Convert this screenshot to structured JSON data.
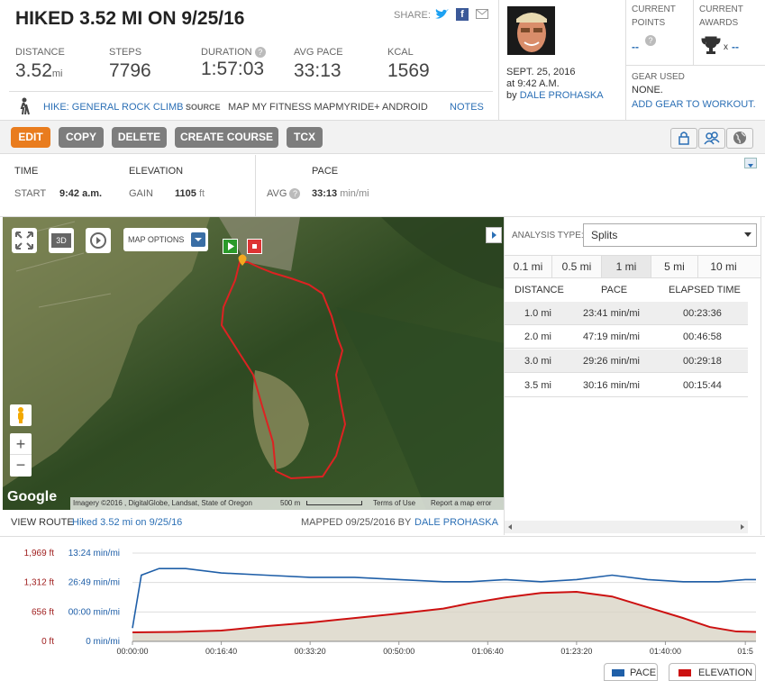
{
  "header": {
    "title": "HIKED 3.52 MI ON 9/25/16",
    "share_label": "SHARE:"
  },
  "stats": [
    {
      "label": "DISTANCE",
      "value": "3.52",
      "unit": "mi"
    },
    {
      "label": "STEPS",
      "value": "7796",
      "unit": ""
    },
    {
      "label": "DURATION",
      "value": "1:57:03",
      "unit": ""
    },
    {
      "label": "AVG PACE",
      "value": "33:13",
      "unit": ""
    },
    {
      "label": "KCAL",
      "value": "1569",
      "unit": ""
    }
  ],
  "activity": {
    "type_label": "HIKE: GENERAL ROCK CLIMB",
    "source_label": "SOURCE",
    "source_value": "MAP MY FITNESS MAPMYRIDE+ ANDROID",
    "notes": "NOTES"
  },
  "profile": {
    "date": "SEPT. 25, 2016",
    "time": "at 9:42 A.M.",
    "by": "by",
    "user": "DALE PROHASKA"
  },
  "points": {
    "label1": "CURRENT",
    "label2": "POINTS",
    "value": "--"
  },
  "awards": {
    "label1": "CURRENT",
    "label2": "AWARDS",
    "x": "x",
    "value": "--"
  },
  "gear": {
    "label": "GEAR USED",
    "value": "NONE.",
    "add": "ADD GEAR TO WORKOUT."
  },
  "toolbar": {
    "edit": "EDIT",
    "copy": "COPY",
    "delete": "DELETE",
    "create_course": "CREATE COURSE",
    "tcx": "TCX"
  },
  "summary": {
    "time_label": "TIME",
    "start_label": "START",
    "start_value": "9:42 a.m.",
    "elev_label": "ELEVATION",
    "gain_label": "GAIN",
    "gain_value": "1105",
    "gain_unit": "ft",
    "pace_label": "PACE",
    "avg_label": "AVG",
    "avg_value": "33:13",
    "avg_unit": "min/mi"
  },
  "map": {
    "options": "MAP OPTIONS",
    "btn3d": "3D",
    "google": "Google",
    "attrib": "Imagery ©2016 , DigitalGlobe, Landsat, State of Oregon",
    "scale": "500 m",
    "terms": "Terms of Use",
    "report": "Report a map error",
    "zoom_in": "+",
    "zoom_out": "−"
  },
  "analysis": {
    "label": "ANALYSIS TYPE:",
    "selected": "Splits",
    "tabs": [
      "0.1 mi",
      "0.5 mi",
      "1 mi",
      "5 mi",
      "10 mi"
    ],
    "headers": [
      "DISTANCE",
      "PACE",
      "ELAPSED TIME"
    ],
    "rows": [
      [
        "1.0 mi",
        "23:41 min/mi",
        "00:23:36"
      ],
      [
        "2.0 mi",
        "47:19 min/mi",
        "00:46:58"
      ],
      [
        "3.0 mi",
        "29:26 min/mi",
        "00:29:18"
      ],
      [
        "3.5 mi",
        "30:16 min/mi",
        "00:15:44"
      ]
    ]
  },
  "route": {
    "label": "VIEW ROUTE",
    "name": "Hiked 3.52 mi on 9/25/16",
    "mapped": "MAPPED 09/25/2016 BY",
    "user": "DALE PROHASKA"
  },
  "chart_data": {
    "type": "line",
    "y_elev_ticks": [
      "1,969 ft",
      "1,312 ft",
      "656 ft",
      "0 ft"
    ],
    "y_pace_ticks": [
      "13:24 min/mi",
      "26:49 min/mi",
      "00:00 min/mi",
      "0 min/mi"
    ],
    "x_ticks": [
      "00:00:00",
      "00:16:40",
      "00:33:20",
      "00:50:00",
      "01:06:40",
      "01:23:20",
      "01:40:00",
      "01:5"
    ],
    "x_range_sec": [
      0,
      7020
    ],
    "series": [
      {
        "name": "PACE",
        "color": "#1f5fa8",
        "x": [
          0,
          100,
          300,
          600,
          1000,
          1500,
          2000,
          2500,
          3000,
          3500,
          3800,
          4200,
          4600,
          5000,
          5400,
          5800,
          6200,
          6600,
          6900,
          7020
        ],
        "y": [
          6,
          30,
          33,
          33,
          31,
          30,
          29,
          29,
          28,
          27,
          27,
          28,
          27,
          28,
          30,
          28,
          27,
          27,
          28,
          28
        ]
      },
      {
        "name": "ELEVATION",
        "color": "#cc1111",
        "x": [
          0,
          500,
          1000,
          1500,
          2000,
          2500,
          3000,
          3500,
          3800,
          4200,
          4600,
          5000,
          5400,
          5800,
          6200,
          6500,
          6800,
          7020
        ],
        "y": [
          200,
          210,
          240,
          340,
          420,
          520,
          620,
          730,
          850,
          980,
          1080,
          1105,
          1000,
          760,
          520,
          320,
          220,
          210
        ]
      }
    ]
  },
  "legend": {
    "pace": "PACE",
    "elevation": "ELEVATION"
  },
  "colors": {
    "accent": "#e97c1e",
    "link": "#2b6fb5",
    "route": "#d22"
  }
}
